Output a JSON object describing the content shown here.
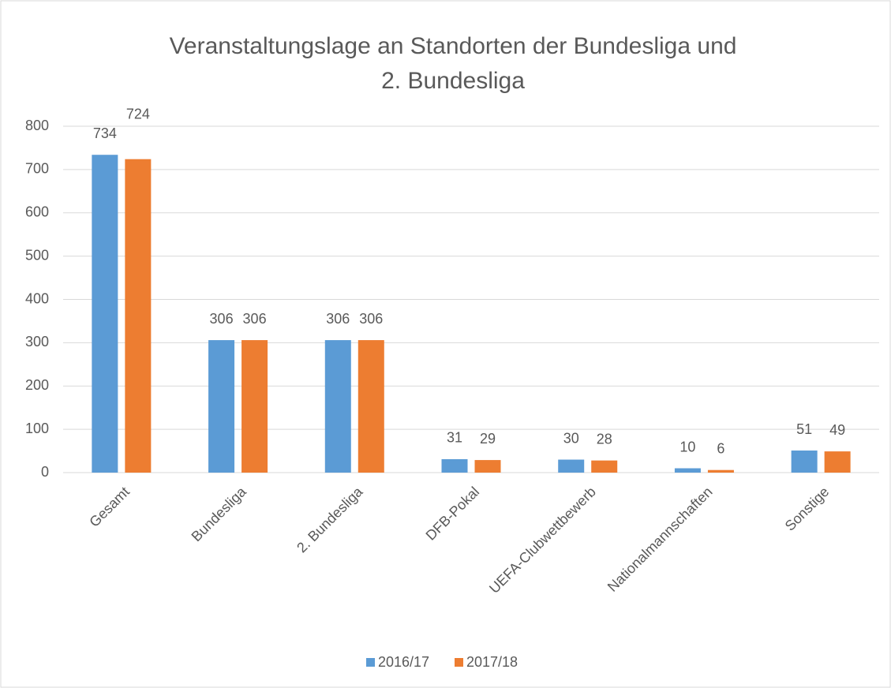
{
  "chart_data": {
    "type": "bar",
    "title": [
      "Veranstaltungslage an Standorten der Bundesliga und",
      "2. Bundesliga"
    ],
    "categories": [
      "Gesamt",
      "Bundesliga",
      "2. Bundesliga",
      "DFB-Pokal",
      "UEFA-Clubwettbewerb",
      "Nationalmannschaften",
      "Sonstige"
    ],
    "series": [
      {
        "name": "2016/17",
        "color": "#5b9bd5",
        "values": [
          734,
          306,
          306,
          31,
          30,
          10,
          51
        ]
      },
      {
        "name": "2017/18",
        "color": "#ed7d31",
        "values": [
          724,
          306,
          306,
          29,
          28,
          6,
          49
        ]
      }
    ],
    "ylim": [
      0,
      800
    ],
    "yticks": [
      0,
      100,
      200,
      300,
      400,
      500,
      600,
      700,
      800
    ],
    "grid": true
  }
}
